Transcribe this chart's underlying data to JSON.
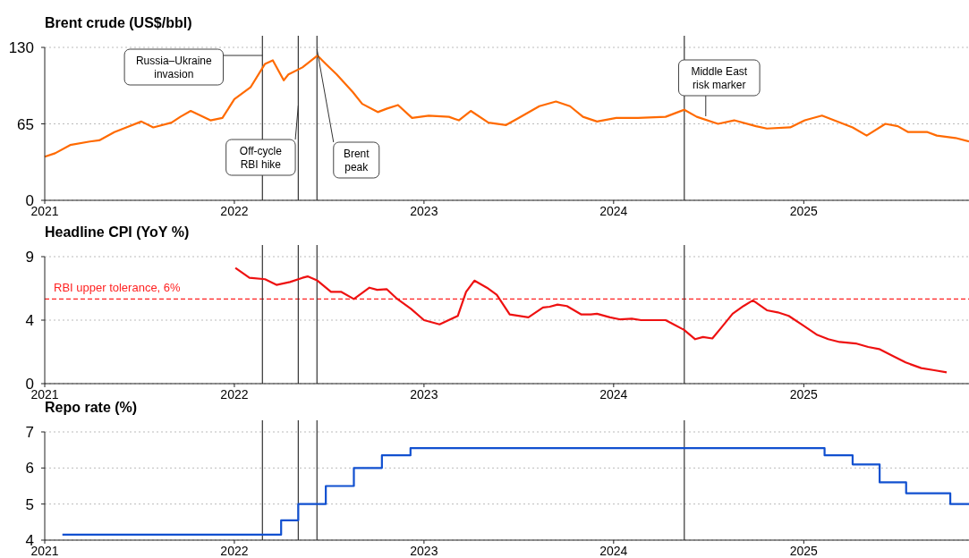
{
  "chart_data": [
    {
      "type": "line",
      "title": "Brent crude (US$/bbl)",
      "color": "#ff6a00",
      "grid": "y",
      "xlim": [
        "2021-01-01",
        "2025-11-15"
      ],
      "xticks": [
        "2021",
        "2022",
        "2023",
        "2024",
        "2025"
      ],
      "ylim": [
        0,
        130
      ],
      "yticks": [
        0,
        65,
        130
      ],
      "x": [
        "2021-01-01",
        "2021-01-21",
        "2021-02-19",
        "2021-03-29",
        "2021-04-16",
        "2021-05-15",
        "2021-06-07",
        "2021-07-06",
        "2021-07-29",
        "2021-09-02",
        "2021-09-19",
        "2021-10-09",
        "2021-11-16",
        "2021-12-09",
        "2022-01-01",
        "2022-02-01",
        "2022-03-01",
        "2022-03-16",
        "2022-04-06",
        "2022-04-15",
        "2022-05-12",
        "2022-06-10",
        "2022-06-26",
        "2022-07-17",
        "2022-08-17",
        "2022-09-04",
        "2022-10-04",
        "2022-10-22",
        "2022-11-12",
        "2022-12-09",
        "2023-01-10",
        "2023-02-18",
        "2023-03-09",
        "2023-04-01",
        "2023-05-05",
        "2023-06-08",
        "2023-07-02",
        "2023-08-11",
        "2023-09-12",
        "2023-10-09",
        "2023-11-03",
        "2023-11-30",
        "2024-01-06",
        "2024-02-17",
        "2024-04-10",
        "2024-05-16",
        "2024-06-09",
        "2024-07-20",
        "2024-08-20",
        "2024-10-01",
        "2024-10-22",
        "2024-12-06",
        "2025-01-03",
        "2025-02-05",
        "2025-04-05",
        "2025-05-02",
        "2025-06-07",
        "2025-07-01",
        "2025-07-21",
        "2025-08-27",
        "2025-09-14",
        "2025-10-20",
        "2025-11-15"
      ],
      "values": [
        37,
        40,
        47,
        50,
        51,
        58,
        62,
        67,
        62,
        66,
        71,
        76,
        68,
        70,
        86,
        96,
        116,
        119,
        102,
        107,
        113,
        123,
        116,
        107,
        92,
        82,
        75,
        78,
        81,
        70,
        72,
        71,
        68,
        76,
        66,
        64,
        70,
        80,
        84,
        80,
        71,
        67,
        70,
        70,
        71,
        77,
        71,
        65,
        68,
        63,
        61,
        62,
        68,
        72,
        62,
        55,
        65,
        63,
        58,
        58,
        55,
        53,
        50
      ],
      "ref_lines": [
        {
          "axis": "x",
          "value": "2022-02-24",
          "label": "Russia–Ukraine invasion",
          "color": "#333333"
        },
        {
          "axis": "x",
          "value": "2022-05-04",
          "label": "Off-cycle RBI hike",
          "color": "#333333"
        },
        {
          "axis": "x",
          "value": "2022-06-09",
          "label": "Brent peak",
          "color": "#333333"
        },
        {
          "axis": "x",
          "value": "2024-05-16",
          "label": "Middle East risk marker",
          "color": "#333333"
        }
      ]
    },
    {
      "type": "line",
      "title": "Headline CPI (YoY %)",
      "color": "#ee1111",
      "grid": "y",
      "xlim": [
        "2021-01-01",
        "2025-11-15"
      ],
      "xticks": [
        "2021",
        "2022",
        "2023",
        "2024",
        "2025"
      ],
      "ylim": [
        0,
        9
      ],
      "yticks": [
        0,
        {
          "value": 4.5,
          "label": "4"
        },
        9
      ],
      "x": [
        "2022-01-03",
        "2022-01-30",
        "2022-03-01",
        "2022-03-23",
        "2022-04-18",
        "2022-05-12",
        "2022-05-22",
        "2022-06-10",
        "2022-07-06",
        "2022-07-26",
        "2022-08-19",
        "2022-09-18",
        "2022-10-03",
        "2022-10-21",
        "2022-11-09",
        "2022-12-07",
        "2023-01-01",
        "2023-01-31",
        "2023-03-07",
        "2023-03-23",
        "2023-04-08",
        "2023-05-02",
        "2023-05-21",
        "2023-06-15",
        "2023-07-21",
        "2023-08-18",
        "2023-08-31",
        "2023-09-15",
        "2023-10-03",
        "2023-10-31",
        "2023-11-18",
        "2023-11-30",
        "2023-12-25",
        "2024-01-14",
        "2024-02-05",
        "2024-02-23",
        "2024-03-20",
        "2024-04-10",
        "2024-04-28",
        "2024-05-16",
        "2024-06-06",
        "2024-06-21",
        "2024-07-09",
        "2024-07-27",
        "2024-08-17",
        "2024-09-07",
        "2024-09-25",
        "2024-10-22",
        "2024-11-12",
        "2024-12-03",
        "2025-01-01",
        "2025-01-27",
        "2025-02-17",
        "2025-03-11",
        "2025-04-11",
        "2025-05-05",
        "2025-05-26",
        "2025-06-22",
        "2025-07-16",
        "2025-08-15",
        "2025-09-09",
        "2025-10-03"
      ],
      "values": [
        8.2,
        7.5,
        7.4,
        7.0,
        7.2,
        7.5,
        7.6,
        7.3,
        6.5,
        6.5,
        6.0,
        6.8,
        6.65,
        6.7,
        6.05,
        5.3,
        4.5,
        4.2,
        4.8,
        6.5,
        7.3,
        6.8,
        6.3,
        4.9,
        4.7,
        5.4,
        5.45,
        5.6,
        5.5,
        4.9,
        4.9,
        4.95,
        4.7,
        4.55,
        4.6,
        4.5,
        4.5,
        4.5,
        4.15,
        3.8,
        3.15,
        3.3,
        3.2,
        4.0,
        4.95,
        5.5,
        5.9,
        5.2,
        5.05,
        4.8,
        4.1,
        3.45,
        3.15,
        2.95,
        2.85,
        2.6,
        2.45,
        1.95,
        1.5,
        1.1,
        0.95,
        0.8
      ],
      "ref_lines": [
        {
          "axis": "y",
          "value": 6,
          "label": "RBI upper tolerance, 6%",
          "color": "#ff2222",
          "line_style": "dashed"
        },
        {
          "axis": "x",
          "value": "2022-02-24",
          "color": "#333333"
        },
        {
          "axis": "x",
          "value": "2022-05-04",
          "color": "#333333"
        },
        {
          "axis": "x",
          "value": "2022-06-09",
          "color": "#333333"
        },
        {
          "axis": "x",
          "value": "2024-05-16",
          "color": "#333333"
        }
      ]
    },
    {
      "type": "step",
      "title": "Repo rate (%)",
      "color": "#1150d0",
      "grid": "y",
      "xlim": [
        "2021-01-01",
        "2025-11-15"
      ],
      "xticks": [
        "2021",
        "2022",
        "2023",
        "2024",
        "2025"
      ],
      "ylim": [
        4,
        7
      ],
      "yticks": [
        4,
        5,
        6,
        7
      ],
      "x": [
        "2021-02-04",
        "2022-04-01",
        "2022-05-04",
        "2022-06-26",
        "2022-08-19",
        "2022-10-12",
        "2022-12-06",
        "2025-02-10",
        "2025-04-05",
        "2025-05-27",
        "2025-07-17",
        "2025-10-10",
        "2025-11-15"
      ],
      "values": [
        4.15,
        4.55,
        5.0,
        5.5,
        6.0,
        6.35,
        6.55,
        6.35,
        6.1,
        5.6,
        5.3,
        5.0,
        5.0
      ],
      "ref_lines": [
        {
          "axis": "x",
          "value": "2022-02-24",
          "color": "#333333"
        },
        {
          "axis": "x",
          "value": "2022-05-04",
          "color": "#333333"
        },
        {
          "axis": "x",
          "value": "2022-06-09",
          "color": "#333333"
        },
        {
          "axis": "x",
          "value": "2024-05-16",
          "color": "#333333"
        }
      ]
    }
  ]
}
